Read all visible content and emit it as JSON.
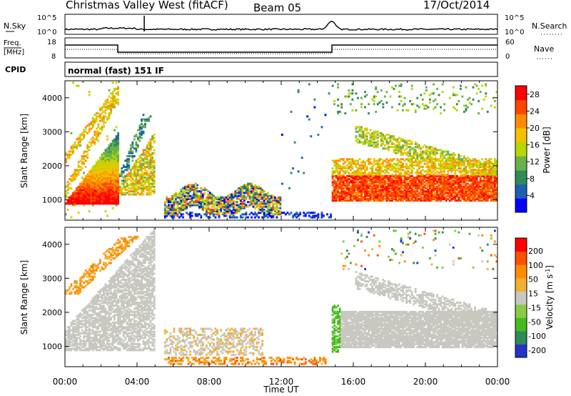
{
  "header": {
    "title": "Christmas Valley West (fitACF)",
    "beam": "Beam 05",
    "date": "17/Oct/2014"
  },
  "nsky_panel": {
    "left_label": "N.Sky",
    "right_label": "N.Search",
    "left_ticks": [
      "10^5",
      "10^0"
    ],
    "right_ticks": [
      "10^5",
      "10^0"
    ]
  },
  "freq_panel": {
    "left_label_line1": "Freq.",
    "left_label_line2": "[MHz]",
    "right_label": "Nave",
    "left_ticks": [
      "18",
      "8"
    ],
    "right_ticks": [
      "60",
      "0"
    ]
  },
  "cpid": {
    "label": "CPID",
    "value": "normal (fast) 151 IF"
  },
  "colors": {
    "power_scale": [
      "#0000ff",
      "#1e5fb4",
      "#2e8b57",
      "#6ab04c",
      "#b8d600",
      "#f2c200",
      "#ff8c00",
      "#ff4500",
      "#ff0000"
    ],
    "velocity_scale": [
      "#2233cc",
      "#2e8b57",
      "#44bb22",
      "#88cc44",
      "#c8c8c0",
      "#f0b030",
      "#ff8c00",
      "#ff5000",
      "#ff0000"
    ]
  },
  "chart_data": [
    {
      "type": "heatmap",
      "name_hint": "power",
      "ylabel": "Slant Range [km]",
      "yticks": [
        "1000",
        "2000",
        "3000",
        "4000"
      ],
      "ylim": [
        400,
        4500
      ],
      "x_ticks": [
        "00:00",
        "04:00",
        "08:00",
        "12:00",
        "16:00",
        "20:00",
        "00:00"
      ],
      "xlim_hours": [
        0,
        24
      ],
      "colorbar_label": "Power [dB]",
      "colorbar_ticks": [
        "4",
        "8",
        "12",
        "16",
        "20",
        "24",
        "28"
      ],
      "colorbar_range": [
        0,
        30
      ]
    },
    {
      "type": "heatmap",
      "name_hint": "velocity",
      "ylabel": "Slant Range [km]",
      "yticks": [
        "1000",
        "2000",
        "3000",
        "4000"
      ],
      "ylim": [
        400,
        4500
      ],
      "x_ticks": [
        "00:00",
        "04:00",
        "08:00",
        "12:00",
        "16:00",
        "20:00",
        "00:00"
      ],
      "xlim_hours": [
        0,
        24
      ],
      "xlabel": "Time UT",
      "colorbar_label": "Velocity [m s^-1]",
      "colorbar_ticks": [
        "200",
        "100",
        "50",
        "15",
        "-15",
        "-50",
        "-100",
        "-200"
      ],
      "colorbar_range": [
        -250,
        250
      ]
    }
  ]
}
